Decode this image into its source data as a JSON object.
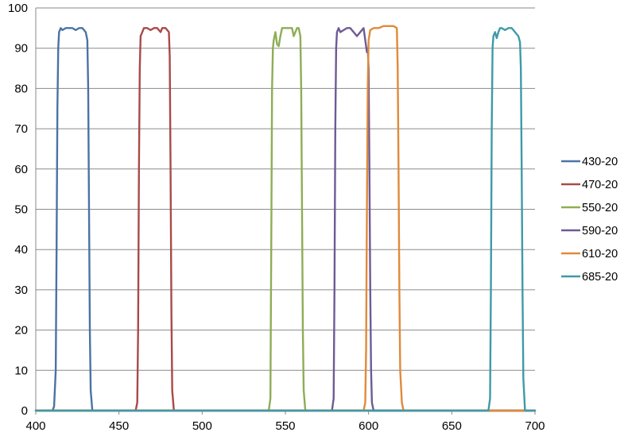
{
  "chart_data": {
    "type": "line",
    "title": "",
    "xlabel": "",
    "ylabel": "",
    "xlim": [
      400,
      700
    ],
    "ylim": [
      0,
      100
    ],
    "x_ticks": [
      400,
      450,
      500,
      550,
      600,
      650,
      700
    ],
    "y_ticks": [
      0,
      10,
      20,
      30,
      40,
      50,
      60,
      70,
      80,
      90,
      100
    ],
    "grid": "horizontal",
    "legend_position": "right",
    "series": [
      {
        "name": "430-20",
        "color": "#4a73a5",
        "points": [
          [
            400,
            0
          ],
          [
            410,
            0
          ],
          [
            411,
            1
          ],
          [
            412,
            10
          ],
          [
            412.5,
            40
          ],
          [
            413,
            75
          ],
          [
            413.5,
            90
          ],
          [
            414,
            94
          ],
          [
            415,
            95
          ],
          [
            416,
            94.5
          ],
          [
            418,
            95
          ],
          [
            420,
            95
          ],
          [
            422,
            95
          ],
          [
            424,
            94.5
          ],
          [
            426,
            95
          ],
          [
            428,
            95
          ],
          [
            430,
            94
          ],
          [
            431,
            92
          ],
          [
            431.5,
            80
          ],
          [
            432,
            50
          ],
          [
            432.5,
            20
          ],
          [
            433,
            5
          ],
          [
            434,
            0
          ],
          [
            700,
            0
          ]
        ]
      },
      {
        "name": "470-20",
        "color": "#a84a47",
        "points": [
          [
            400,
            0
          ],
          [
            460,
            0
          ],
          [
            461,
            2
          ],
          [
            461.5,
            20
          ],
          [
            462,
            60
          ],
          [
            462.5,
            85
          ],
          [
            463,
            93
          ],
          [
            464,
            94
          ],
          [
            465,
            95
          ],
          [
            467,
            95
          ],
          [
            469,
            94.5
          ],
          [
            471,
            95
          ],
          [
            473,
            95
          ],
          [
            475,
            94
          ],
          [
            476,
            95
          ],
          [
            478,
            95
          ],
          [
            480,
            94
          ],
          [
            480.5,
            88
          ],
          [
            481,
            60
          ],
          [
            481.5,
            25
          ],
          [
            482,
            5
          ],
          [
            483,
            0
          ],
          [
            700,
            0
          ]
        ]
      },
      {
        "name": "550-20",
        "color": "#8ead55",
        "points": [
          [
            400,
            0
          ],
          [
            540,
            0
          ],
          [
            541,
            3
          ],
          [
            541.5,
            40
          ],
          [
            542,
            80
          ],
          [
            542.5,
            90
          ],
          [
            543,
            92
          ],
          [
            544,
            94
          ],
          [
            545,
            91
          ],
          [
            546,
            90.5
          ],
          [
            547,
            93
          ],
          [
            548,
            95
          ],
          [
            550,
            95
          ],
          [
            552,
            95
          ],
          [
            554,
            95
          ],
          [
            555,
            93
          ],
          [
            556,
            94
          ],
          [
            557,
            95
          ],
          [
            558,
            95
          ],
          [
            559,
            93
          ],
          [
            559.5,
            80
          ],
          [
            560,
            50
          ],
          [
            560.5,
            20
          ],
          [
            561,
            5
          ],
          [
            562,
            0
          ],
          [
            700,
            0
          ]
        ]
      },
      {
        "name": "590-20",
        "color": "#6e5a95",
        "points": [
          [
            400,
            0
          ],
          [
            578,
            0
          ],
          [
            579,
            3
          ],
          [
            579.5,
            30
          ],
          [
            580,
            70
          ],
          [
            580.5,
            90
          ],
          [
            581,
            94
          ],
          [
            582,
            95
          ],
          [
            583,
            94
          ],
          [
            585,
            94.5
          ],
          [
            587,
            95
          ],
          [
            589,
            95
          ],
          [
            591,
            94
          ],
          [
            593,
            93
          ],
          [
            595,
            94
          ],
          [
            597,
            95
          ],
          [
            598,
            92
          ],
          [
            599,
            89
          ],
          [
            599.5,
            90
          ],
          [
            600,
            85
          ],
          [
            600.5,
            60
          ],
          [
            601,
            30
          ],
          [
            601.5,
            10
          ],
          [
            602,
            2
          ],
          [
            603,
            0
          ],
          [
            700,
            0
          ]
        ]
      },
      {
        "name": "610-20",
        "color": "#e08a3a",
        "points": [
          [
            400,
            0
          ],
          [
            597,
            0
          ],
          [
            598,
            2
          ],
          [
            598.5,
            15
          ],
          [
            599,
            50
          ],
          [
            599.5,
            80
          ],
          [
            600,
            92
          ],
          [
            601,
            94.5
          ],
          [
            603,
            95
          ],
          [
            606,
            95
          ],
          [
            609,
            95.5
          ],
          [
            612,
            95.5
          ],
          [
            615,
            95.5
          ],
          [
            617,
            95
          ],
          [
            617.5,
            85
          ],
          [
            618,
            60
          ],
          [
            618.5,
            30
          ],
          [
            619,
            10
          ],
          [
            620,
            2
          ],
          [
            621,
            0
          ],
          [
            700,
            0
          ]
        ]
      },
      {
        "name": "685-20",
        "color": "#3e9aa8",
        "points": [
          [
            400,
            0
          ],
          [
            672,
            0
          ],
          [
            673,
            3
          ],
          [
            673.5,
            30
          ],
          [
            674,
            70
          ],
          [
            674.5,
            90
          ],
          [
            675,
            93
          ],
          [
            676,
            94
          ],
          [
            677,
            92.5
          ],
          [
            678,
            94
          ],
          [
            679,
            95
          ],
          [
            680,
            95
          ],
          [
            682,
            94.5
          ],
          [
            684,
            95
          ],
          [
            686,
            95
          ],
          [
            688,
            94
          ],
          [
            690,
            93
          ],
          [
            691,
            91.5
          ],
          [
            691.5,
            85
          ],
          [
            692,
            60
          ],
          [
            692.5,
            30
          ],
          [
            693,
            8
          ],
          [
            694,
            0
          ],
          [
            700,
            0
          ]
        ]
      }
    ]
  }
}
